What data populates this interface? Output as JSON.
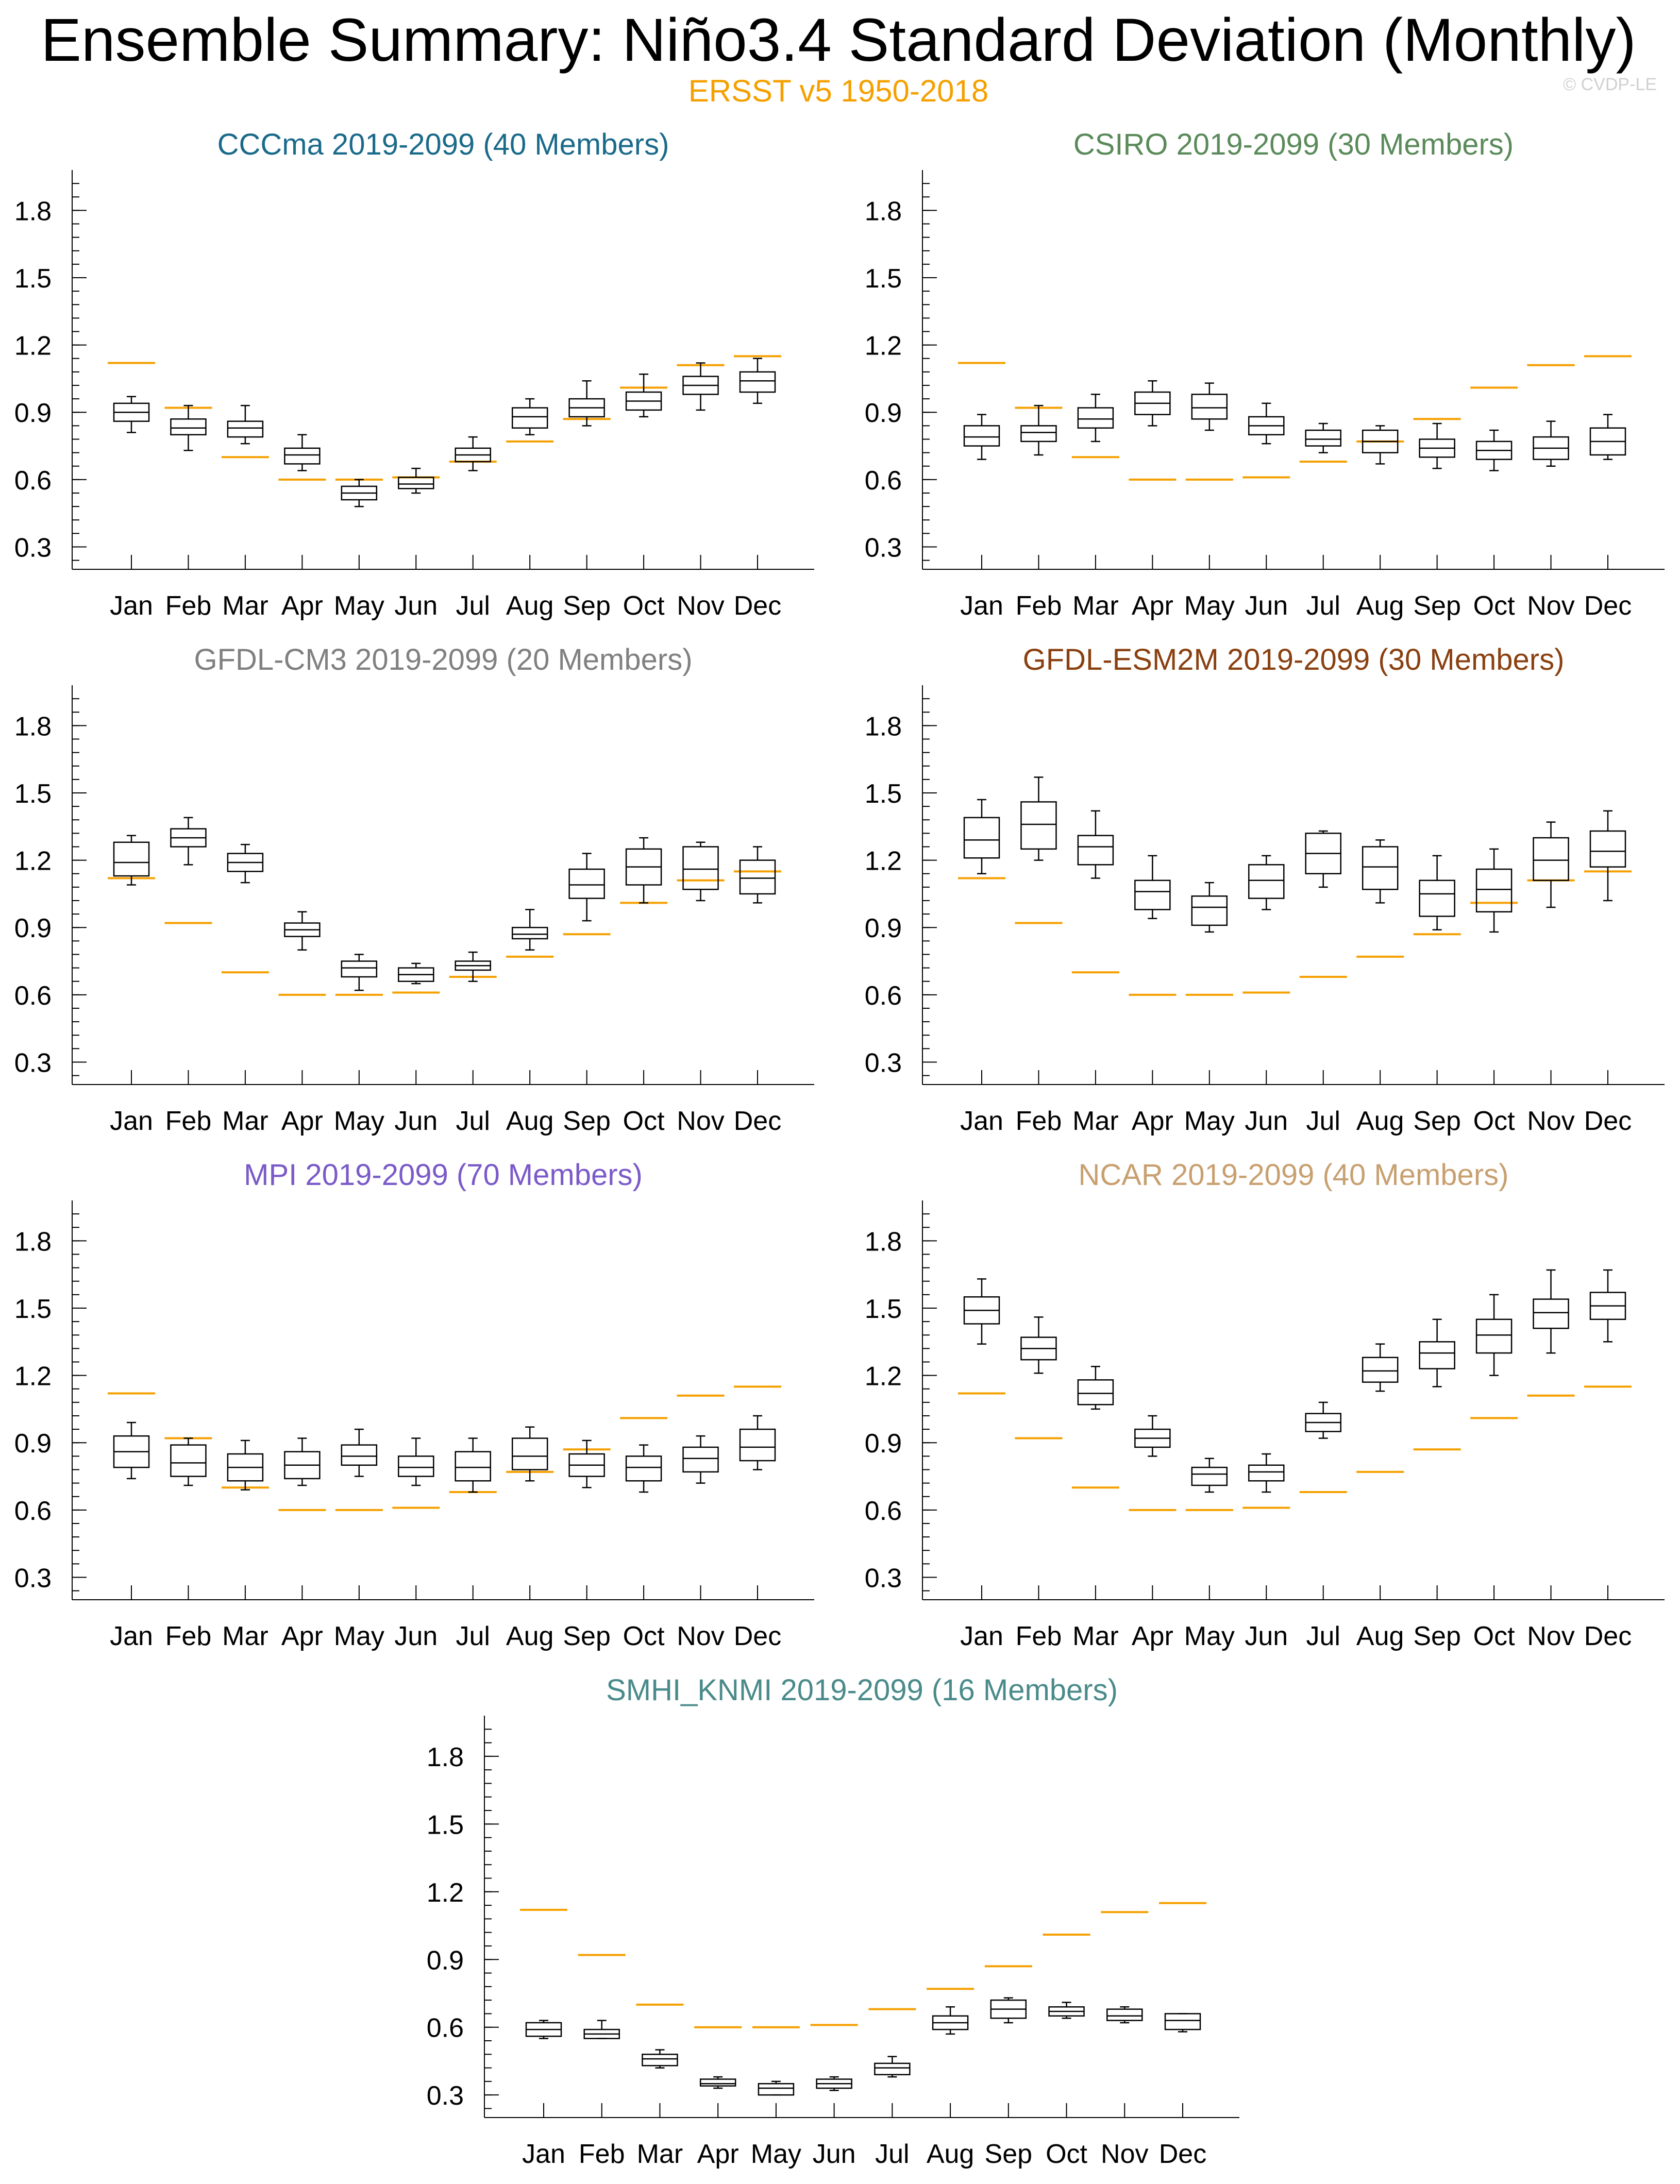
{
  "title": "Ensemble Summary: Niño3.4 Standard Deviation (Monthly)",
  "subtitle": "ERSST v5 1950-2018",
  "watermark": "© CVDP-LE",
  "colors": {
    "obs": "#f5a000",
    "box": "#000000"
  },
  "chart_data": [
    {
      "type": "box",
      "title": "CCCma 2019-2099 (40 Members)",
      "title_color": "#1a6a8a",
      "categories": [
        "Jan",
        "Feb",
        "Mar",
        "Apr",
        "May",
        "Jun",
        "Jul",
        "Aug",
        "Sep",
        "Oct",
        "Nov",
        "Dec"
      ],
      "ylim": [
        0.2,
        1.98
      ],
      "yticks": [
        0.3,
        0.6,
        0.9,
        1.2,
        1.5,
        1.8
      ],
      "ytick_labels": [
        "0.3",
        "0.6",
        "0.9",
        "1.2",
        "1.5",
        "1.8"
      ],
      "observed": [
        1.12,
        0.92,
        0.7,
        0.6,
        0.6,
        0.61,
        0.68,
        0.77,
        0.87,
        1.01,
        1.11,
        1.15
      ],
      "boxes": [
        {
          "min": 0.81,
          "q1": 0.86,
          "median": 0.9,
          "q3": 0.94,
          "max": 0.97
        },
        {
          "min": 0.73,
          "q1": 0.8,
          "median": 0.83,
          "q3": 0.87,
          "max": 0.93
        },
        {
          "min": 0.76,
          "q1": 0.79,
          "median": 0.83,
          "q3": 0.86,
          "max": 0.93
        },
        {
          "min": 0.64,
          "q1": 0.67,
          "median": 0.71,
          "q3": 0.74,
          "max": 0.8
        },
        {
          "min": 0.48,
          "q1": 0.51,
          "median": 0.54,
          "q3": 0.57,
          "max": 0.6
        },
        {
          "min": 0.54,
          "q1": 0.56,
          "median": 0.58,
          "q3": 0.61,
          "max": 0.65
        },
        {
          "min": 0.64,
          "q1": 0.68,
          "median": 0.71,
          "q3": 0.74,
          "max": 0.79
        },
        {
          "min": 0.8,
          "q1": 0.83,
          "median": 0.88,
          "q3": 0.92,
          "max": 0.96
        },
        {
          "min": 0.84,
          "q1": 0.88,
          "median": 0.92,
          "q3": 0.96,
          "max": 1.04
        },
        {
          "min": 0.88,
          "q1": 0.91,
          "median": 0.95,
          "q3": 0.99,
          "max": 1.07
        },
        {
          "min": 0.91,
          "q1": 0.98,
          "median": 1.02,
          "q3": 1.06,
          "max": 1.12
        },
        {
          "min": 0.94,
          "q1": 0.99,
          "median": 1.04,
          "q3": 1.08,
          "max": 1.14
        }
      ]
    },
    {
      "type": "box",
      "title": "CSIRO 2019-2099 (30 Members)",
      "title_color": "#5a8a5a",
      "categories": [
        "Jan",
        "Feb",
        "Mar",
        "Apr",
        "May",
        "Jun",
        "Jul",
        "Aug",
        "Sep",
        "Oct",
        "Nov",
        "Dec"
      ],
      "ylim": [
        0.2,
        1.98
      ],
      "yticks": [
        0.3,
        0.6,
        0.9,
        1.2,
        1.5,
        1.8
      ],
      "ytick_labels": [
        "0.3",
        "0.6",
        "0.9",
        "1.2",
        "1.5",
        "1.8"
      ],
      "observed": [
        1.12,
        0.92,
        0.7,
        0.6,
        0.6,
        0.61,
        0.68,
        0.77,
        0.87,
        1.01,
        1.11,
        1.15
      ],
      "boxes": [
        {
          "min": 0.69,
          "q1": 0.75,
          "median": 0.79,
          "q3": 0.84,
          "max": 0.89
        },
        {
          "min": 0.71,
          "q1": 0.77,
          "median": 0.81,
          "q3": 0.84,
          "max": 0.93
        },
        {
          "min": 0.77,
          "q1": 0.83,
          "median": 0.87,
          "q3": 0.92,
          "max": 0.98
        },
        {
          "min": 0.84,
          "q1": 0.89,
          "median": 0.94,
          "q3": 0.99,
          "max": 1.04
        },
        {
          "min": 0.82,
          "q1": 0.87,
          "median": 0.92,
          "q3": 0.98,
          "max": 1.03
        },
        {
          "min": 0.76,
          "q1": 0.8,
          "median": 0.84,
          "q3": 0.88,
          "max": 0.94
        },
        {
          "min": 0.72,
          "q1": 0.75,
          "median": 0.78,
          "q3": 0.82,
          "max": 0.85
        },
        {
          "min": 0.67,
          "q1": 0.72,
          "median": 0.77,
          "q3": 0.82,
          "max": 0.84
        },
        {
          "min": 0.65,
          "q1": 0.7,
          "median": 0.74,
          "q3": 0.78,
          "max": 0.85
        },
        {
          "min": 0.64,
          "q1": 0.69,
          "median": 0.73,
          "q3": 0.77,
          "max": 0.82
        },
        {
          "min": 0.66,
          "q1": 0.69,
          "median": 0.74,
          "q3": 0.79,
          "max": 0.86
        },
        {
          "min": 0.69,
          "q1": 0.71,
          "median": 0.77,
          "q3": 0.83,
          "max": 0.89
        }
      ]
    },
    {
      "type": "box",
      "title": "GFDL-CM3 2019-2099 (20 Members)",
      "title_color": "#808080",
      "categories": [
        "Jan",
        "Feb",
        "Mar",
        "Apr",
        "May",
        "Jun",
        "Jul",
        "Aug",
        "Sep",
        "Oct",
        "Nov",
        "Dec"
      ],
      "ylim": [
        0.2,
        1.98
      ],
      "yticks": [
        0.3,
        0.6,
        0.9,
        1.2,
        1.5,
        1.8
      ],
      "ytick_labels": [
        "0.3",
        "0.6",
        "0.9",
        "1.2",
        "1.5",
        "1.8"
      ],
      "observed": [
        1.12,
        0.92,
        0.7,
        0.6,
        0.6,
        0.61,
        0.68,
        0.77,
        0.87,
        1.01,
        1.11,
        1.15
      ],
      "boxes": [
        {
          "min": 1.09,
          "q1": 1.13,
          "median": 1.19,
          "q3": 1.28,
          "max": 1.31
        },
        {
          "min": 1.18,
          "q1": 1.26,
          "median": 1.3,
          "q3": 1.34,
          "max": 1.39
        },
        {
          "min": 1.1,
          "q1": 1.15,
          "median": 1.19,
          "q3": 1.23,
          "max": 1.27
        },
        {
          "min": 0.8,
          "q1": 0.86,
          "median": 0.89,
          "q3": 0.92,
          "max": 0.97
        },
        {
          "min": 0.62,
          "q1": 0.68,
          "median": 0.72,
          "q3": 0.75,
          "max": 0.78
        },
        {
          "min": 0.65,
          "q1": 0.66,
          "median": 0.69,
          "q3": 0.72,
          "max": 0.74
        },
        {
          "min": 0.66,
          "q1": 0.71,
          "median": 0.73,
          "q3": 0.75,
          "max": 0.79
        },
        {
          "min": 0.8,
          "q1": 0.85,
          "median": 0.87,
          "q3": 0.9,
          "max": 0.98
        },
        {
          "min": 0.93,
          "q1": 1.03,
          "median": 1.09,
          "q3": 1.16,
          "max": 1.23
        },
        {
          "min": 1.01,
          "q1": 1.09,
          "median": 1.17,
          "q3": 1.25,
          "max": 1.3
        },
        {
          "min": 1.02,
          "q1": 1.07,
          "median": 1.16,
          "q3": 1.26,
          "max": 1.28
        },
        {
          "min": 1.01,
          "q1": 1.05,
          "median": 1.12,
          "q3": 1.2,
          "max": 1.26
        }
      ]
    },
    {
      "type": "box",
      "title": "GFDL-ESM2M 2019-2099 (30 Members)",
      "title_color": "#8a4010",
      "categories": [
        "Jan",
        "Feb",
        "Mar",
        "Apr",
        "May",
        "Jun",
        "Jul",
        "Aug",
        "Sep",
        "Oct",
        "Nov",
        "Dec"
      ],
      "ylim": [
        0.2,
        1.98
      ],
      "yticks": [
        0.3,
        0.6,
        0.9,
        1.2,
        1.5,
        1.8
      ],
      "ytick_labels": [
        "0.3",
        "0.6",
        "0.9",
        "1.2",
        "1.5",
        "1.8"
      ],
      "observed": [
        1.12,
        0.92,
        0.7,
        0.6,
        0.6,
        0.61,
        0.68,
        0.77,
        0.87,
        1.01,
        1.11,
        1.15
      ],
      "boxes": [
        {
          "min": 1.14,
          "q1": 1.21,
          "median": 1.29,
          "q3": 1.39,
          "max": 1.47
        },
        {
          "min": 1.2,
          "q1": 1.25,
          "median": 1.36,
          "q3": 1.46,
          "max": 1.57
        },
        {
          "min": 1.12,
          "q1": 1.18,
          "median": 1.26,
          "q3": 1.31,
          "max": 1.42
        },
        {
          "min": 0.94,
          "q1": 0.98,
          "median": 1.06,
          "q3": 1.11,
          "max": 1.22
        },
        {
          "min": 0.88,
          "q1": 0.91,
          "median": 0.99,
          "q3": 1.04,
          "max": 1.1
        },
        {
          "min": 0.98,
          "q1": 1.03,
          "median": 1.11,
          "q3": 1.18,
          "max": 1.22
        },
        {
          "min": 1.08,
          "q1": 1.14,
          "median": 1.23,
          "q3": 1.32,
          "max": 1.33
        },
        {
          "min": 1.01,
          "q1": 1.07,
          "median": 1.17,
          "q3": 1.26,
          "max": 1.29
        },
        {
          "min": 0.89,
          "q1": 0.95,
          "median": 1.05,
          "q3": 1.11,
          "max": 1.22
        },
        {
          "min": 0.88,
          "q1": 0.97,
          "median": 1.07,
          "q3": 1.16,
          "max": 1.25
        },
        {
          "min": 0.99,
          "q1": 1.11,
          "median": 1.2,
          "q3": 1.3,
          "max": 1.37
        },
        {
          "min": 1.02,
          "q1": 1.17,
          "median": 1.24,
          "q3": 1.33,
          "max": 1.42
        }
      ]
    },
    {
      "type": "box",
      "title": "MPI 2019-2099 (70 Members)",
      "title_color": "#7a5ac8",
      "categories": [
        "Jan",
        "Feb",
        "Mar",
        "Apr",
        "May",
        "Jun",
        "Jul",
        "Aug",
        "Sep",
        "Oct",
        "Nov",
        "Dec"
      ],
      "ylim": [
        0.2,
        1.98
      ],
      "yticks": [
        0.3,
        0.6,
        0.9,
        1.2,
        1.5,
        1.8
      ],
      "ytick_labels": [
        "0.3",
        "0.6",
        "0.9",
        "1.2",
        "1.5",
        "1.8"
      ],
      "observed": [
        1.12,
        0.92,
        0.7,
        0.6,
        0.6,
        0.61,
        0.68,
        0.77,
        0.87,
        1.01,
        1.11,
        1.15
      ],
      "boxes": [
        {
          "min": 0.74,
          "q1": 0.79,
          "median": 0.86,
          "q3": 0.93,
          "max": 0.99
        },
        {
          "min": 0.71,
          "q1": 0.75,
          "median": 0.81,
          "q3": 0.89,
          "max": 0.92
        },
        {
          "min": 0.69,
          "q1": 0.73,
          "median": 0.79,
          "q3": 0.85,
          "max": 0.91
        },
        {
          "min": 0.71,
          "q1": 0.74,
          "median": 0.8,
          "q3": 0.86,
          "max": 0.92
        },
        {
          "min": 0.75,
          "q1": 0.8,
          "median": 0.84,
          "q3": 0.89,
          "max": 0.96
        },
        {
          "min": 0.71,
          "q1": 0.75,
          "median": 0.79,
          "q3": 0.84,
          "max": 0.92
        },
        {
          "min": 0.68,
          "q1": 0.73,
          "median": 0.79,
          "q3": 0.86,
          "max": 0.92
        },
        {
          "min": 0.73,
          "q1": 0.78,
          "median": 0.84,
          "q3": 0.92,
          "max": 0.97
        },
        {
          "min": 0.7,
          "q1": 0.75,
          "median": 0.8,
          "q3": 0.85,
          "max": 0.91
        },
        {
          "min": 0.68,
          "q1": 0.73,
          "median": 0.79,
          "q3": 0.84,
          "max": 0.89
        },
        {
          "min": 0.72,
          "q1": 0.77,
          "median": 0.83,
          "q3": 0.88,
          "max": 0.93
        },
        {
          "min": 0.78,
          "q1": 0.82,
          "median": 0.88,
          "q3": 0.96,
          "max": 1.02
        }
      ]
    },
    {
      "type": "box",
      "title": "NCAR 2019-2099 (40 Members)",
      "title_color": "#c8a070",
      "categories": [
        "Jan",
        "Feb",
        "Mar",
        "Apr",
        "May",
        "Jun",
        "Jul",
        "Aug",
        "Sep",
        "Oct",
        "Nov",
        "Dec"
      ],
      "ylim": [
        0.2,
        1.98
      ],
      "yticks": [
        0.3,
        0.6,
        0.9,
        1.2,
        1.5,
        1.8
      ],
      "ytick_labels": [
        "0.3",
        "0.6",
        "0.9",
        "1.2",
        "1.5",
        "1.8"
      ],
      "observed": [
        1.12,
        0.92,
        0.7,
        0.6,
        0.6,
        0.61,
        0.68,
        0.77,
        0.87,
        1.01,
        1.11,
        1.15
      ],
      "boxes": [
        {
          "min": 1.34,
          "q1": 1.43,
          "median": 1.49,
          "q3": 1.55,
          "max": 1.63
        },
        {
          "min": 1.21,
          "q1": 1.27,
          "median": 1.32,
          "q3": 1.37,
          "max": 1.46
        },
        {
          "min": 1.05,
          "q1": 1.07,
          "median": 1.12,
          "q3": 1.18,
          "max": 1.24
        },
        {
          "min": 0.84,
          "q1": 0.88,
          "median": 0.92,
          "q3": 0.96,
          "max": 1.02
        },
        {
          "min": 0.68,
          "q1": 0.71,
          "median": 0.76,
          "q3": 0.79,
          "max": 0.83
        },
        {
          "min": 0.68,
          "q1": 0.73,
          "median": 0.77,
          "q3": 0.8,
          "max": 0.85
        },
        {
          "min": 0.92,
          "q1": 0.95,
          "median": 0.99,
          "q3": 1.03,
          "max": 1.08
        },
        {
          "min": 1.13,
          "q1": 1.17,
          "median": 1.22,
          "q3": 1.28,
          "max": 1.34
        },
        {
          "min": 1.15,
          "q1": 1.23,
          "median": 1.3,
          "q3": 1.35,
          "max": 1.45
        },
        {
          "min": 1.2,
          "q1": 1.3,
          "median": 1.38,
          "q3": 1.45,
          "max": 1.56
        },
        {
          "min": 1.3,
          "q1": 1.41,
          "median": 1.48,
          "q3": 1.54,
          "max": 1.67
        },
        {
          "min": 1.35,
          "q1": 1.45,
          "median": 1.51,
          "q3": 1.57,
          "max": 1.67
        }
      ]
    },
    {
      "type": "box",
      "title": "SMHI_KNMI 2019-2099 (16 Members)",
      "title_color": "#4a8a8a",
      "categories": [
        "Jan",
        "Feb",
        "Mar",
        "Apr",
        "May",
        "Jun",
        "Jul",
        "Aug",
        "Sep",
        "Oct",
        "Nov",
        "Dec"
      ],
      "ylim": [
        0.2,
        1.98
      ],
      "yticks": [
        0.3,
        0.6,
        0.9,
        1.2,
        1.5,
        1.8
      ],
      "ytick_labels": [
        "0.3",
        "0.6",
        "0.9",
        "1.2",
        "1.5",
        "1.8"
      ],
      "observed": [
        1.12,
        0.92,
        0.7,
        0.6,
        0.6,
        0.61,
        0.68,
        0.77,
        0.87,
        1.01,
        1.11,
        1.15
      ],
      "boxes": [
        {
          "min": 0.55,
          "q1": 0.56,
          "median": 0.59,
          "q3": 0.62,
          "max": 0.63
        },
        {
          "min": 0.55,
          "q1": 0.55,
          "median": 0.57,
          "q3": 0.59,
          "max": 0.63
        },
        {
          "min": 0.42,
          "q1": 0.43,
          "median": 0.46,
          "q3": 0.48,
          "max": 0.5
        },
        {
          "min": 0.33,
          "q1": 0.34,
          "median": 0.35,
          "q3": 0.37,
          "max": 0.38
        },
        {
          "min": 0.3,
          "q1": 0.3,
          "median": 0.33,
          "q3": 0.35,
          "max": 0.36
        },
        {
          "min": 0.32,
          "q1": 0.33,
          "median": 0.35,
          "q3": 0.37,
          "max": 0.38
        },
        {
          "min": 0.38,
          "q1": 0.39,
          "median": 0.42,
          "q3": 0.44,
          "max": 0.47
        },
        {
          "min": 0.57,
          "q1": 0.59,
          "median": 0.62,
          "q3": 0.65,
          "max": 0.69
        },
        {
          "min": 0.62,
          "q1": 0.64,
          "median": 0.68,
          "q3": 0.72,
          "max": 0.73
        },
        {
          "min": 0.64,
          "q1": 0.65,
          "median": 0.67,
          "q3": 0.69,
          "max": 0.71
        },
        {
          "min": 0.62,
          "q1": 0.63,
          "median": 0.65,
          "q3": 0.68,
          "max": 0.69
        },
        {
          "min": 0.58,
          "q1": 0.59,
          "median": 0.63,
          "q3": 0.66,
          "max": 0.66
        }
      ]
    }
  ]
}
